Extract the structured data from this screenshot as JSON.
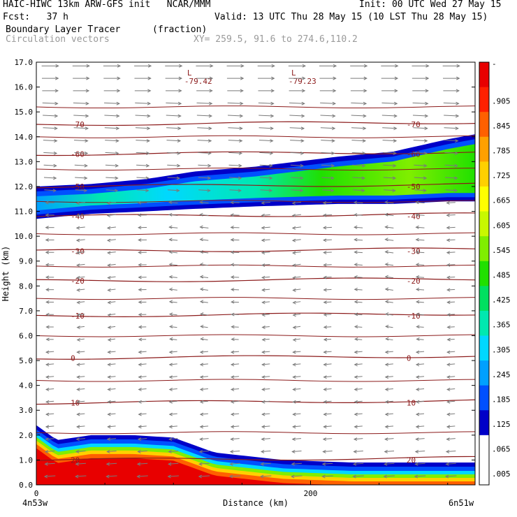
{
  "header": {
    "line1_left": "HAIC-HIWC 13km ARW-GFS init   NCAR/MMM",
    "line1_right": "Init: 00 UTC Wed 27 May 15",
    "line2_left": "Fcst:   37 h",
    "line2_right": "Valid: 13 UTC Thu 28 May 15 (10 LST Thu 28 May 15)",
    "field_name": "Boundary Layer Tracer",
    "field_units": "(fraction)",
    "overlay_name": "Circulation vectors",
    "cross_section": "XY= 259.5, 91.6 to 274.6,110.2"
  },
  "axes": {
    "ylabel": "Height (km)",
    "xlabel": "Distance (km)",
    "left_endpoint": "4n53w",
    "right_endpoint": "6n51w"
  },
  "colors": {
    "contour_line": "#8b1a1a",
    "vector": "#7a7a7a",
    "scale": [
      "#ffffff",
      "#0000c8",
      "#0050ff",
      "#00a0ff",
      "#00d8ff",
      "#00e8b0",
      "#00e060",
      "#20e000",
      "#80ee00",
      "#c8f800",
      "#ffff00",
      "#ffd000",
      "#ffa000",
      "#ff6000",
      "#ff2000",
      "#e80000"
    ]
  },
  "chart_data": {
    "type": "heatmap",
    "title": "Boundary Layer Tracer",
    "xlabel": "Distance (km)",
    "ylabel": "Height (km)",
    "xlim": [
      0,
      320
    ],
    "ylim": [
      0,
      17
    ],
    "xticks": [
      0,
      200
    ],
    "yticks": [
      "0.0",
      "1.0",
      "2.0",
      "3.0",
      "4.0",
      "5.0",
      "6.0",
      "7.0",
      "8.0",
      "9.0",
      "10.0",
      "11.0",
      "12.0",
      "13.0",
      "14.0",
      "15.0",
      "16.0",
      "17.0"
    ],
    "colorbar_ticks": [
      "-",
      ".905",
      ".845",
      ".785",
      ".725",
      ".665",
      ".605",
      ".545",
      ".485",
      ".425",
      ".365",
      ".305",
      ".245",
      ".185",
      ".125",
      ".065",
      ".005"
    ],
    "tracer_upper_layer": {
      "x": [
        0,
        40,
        80,
        115,
        160,
        220,
        260,
        300,
        320
      ],
      "bottom_km": [
        10.7,
        10.9,
        11.0,
        11.1,
        11.2,
        11.3,
        11.3,
        11.4,
        11.4
      ],
      "top_km": [
        12.0,
        12.1,
        12.3,
        12.6,
        12.8,
        13.2,
        13.4,
        13.9,
        14.1
      ]
    },
    "tracer_lower_layer": {
      "x": [
        0,
        15,
        40,
        70,
        100,
        130,
        180,
        230,
        280,
        320
      ],
      "top_km": [
        2.4,
        1.8,
        2.0,
        2.0,
        1.9,
        1.3,
        1.0,
        0.9,
        0.9,
        0.9
      ]
    },
    "contours": [
      {
        "level": "-70",
        "label": "-70",
        "height_km": 14.5
      },
      {
        "level": "-60",
        "label": "-60",
        "height_km": 13.3
      },
      {
        "level": "-50",
        "label": "-50",
        "height_km": 12.0
      },
      {
        "level": "-40",
        "label": "-40",
        "height_km": 10.8
      },
      {
        "level": "-30",
        "label": "-30",
        "height_km": 9.4
      },
      {
        "level": "-20",
        "label": "-20",
        "height_km": 8.2
      },
      {
        "level": "-10",
        "label": "-10",
        "height_km": 6.8
      },
      {
        "level": "0",
        "label": "0",
        "height_km": 5.1
      },
      {
        "level": "10",
        "label": "10",
        "height_km": 3.3
      },
      {
        "level": "20",
        "label": "20",
        "height_km": 1.0
      }
    ],
    "lows": [
      {
        "label": "L",
        "value": "-79.42",
        "x": 110,
        "height_km": 16.3
      },
      {
        "label": "L",
        "value": "-79.23",
        "x": 186,
        "height_km": 16.3
      }
    ]
  }
}
